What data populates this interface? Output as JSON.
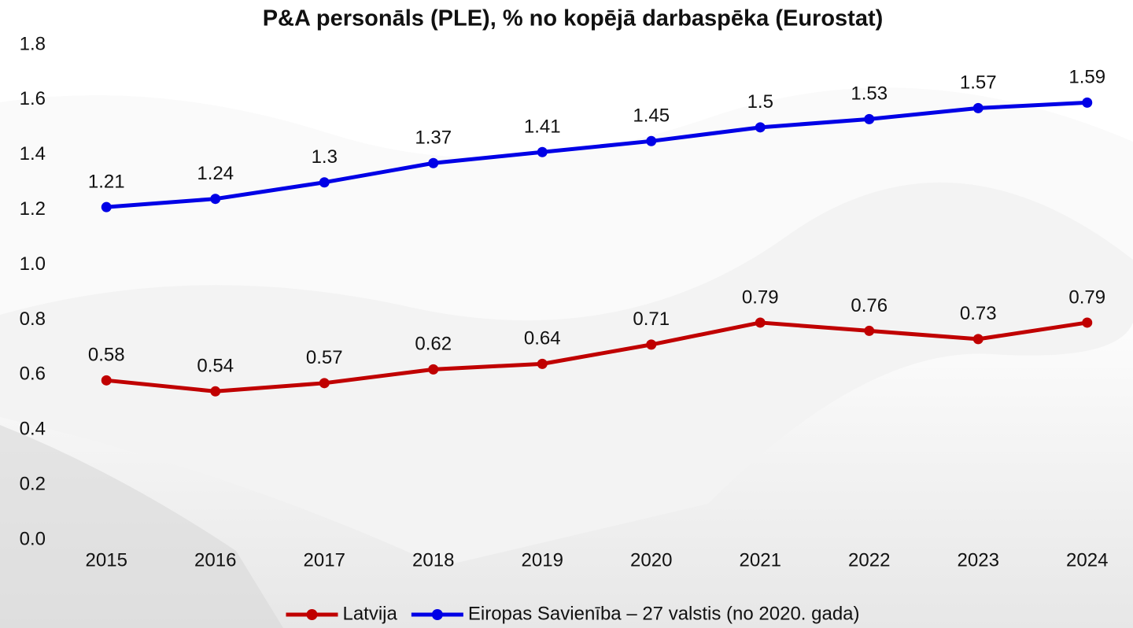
{
  "chart_data": {
    "type": "line",
    "title": "P&A personāls (PLE), % no kopējā darbaspēka (Eurostat)",
    "categories": [
      "2015",
      "2016",
      "2017",
      "2018",
      "2019",
      "2020",
      "2021",
      "2022",
      "2023",
      "2024"
    ],
    "series": [
      {
        "name": "Latvija",
        "color": "#c00000",
        "values": [
          0.58,
          0.54,
          0.57,
          0.62,
          0.64,
          0.71,
          0.79,
          0.76,
          0.73,
          0.79
        ]
      },
      {
        "name": "Eiropas Savienība – 27 valstis (no 2020. gada)",
        "color": "#0000e6",
        "values": [
          1.21,
          1.24,
          1.3,
          1.37,
          1.41,
          1.45,
          1.5,
          1.53,
          1.57,
          1.59
        ]
      }
    ],
    "ylim": [
      0,
      1.8
    ],
    "yticks": [
      {
        "value": 0,
        "label": "0.0"
      },
      0.2,
      0.4,
      0.6,
      0.8,
      {
        "value": 1,
        "label": "1.0"
      },
      1.2,
      1.4,
      1.6,
      1.8
    ],
    "grid": false,
    "legend": "bottom"
  }
}
